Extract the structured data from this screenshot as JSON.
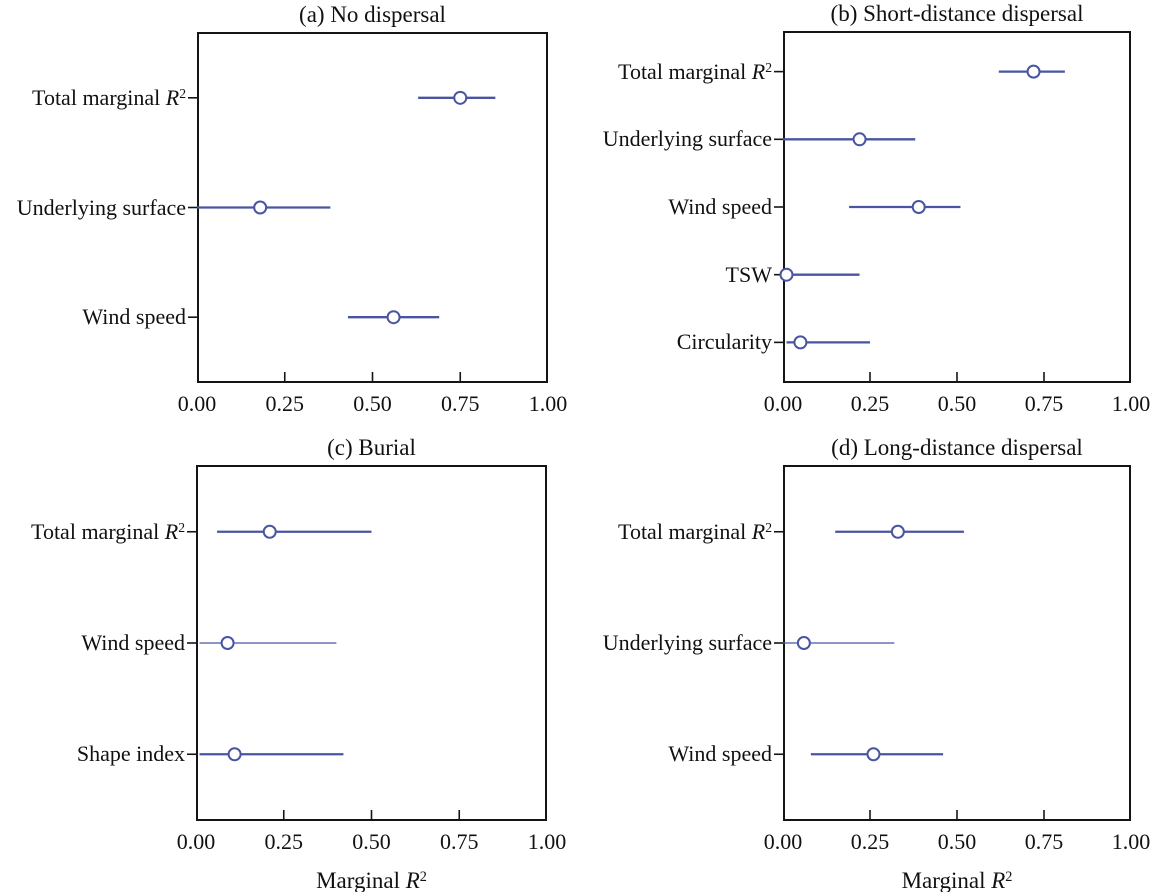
{
  "figure": {
    "background": "#ffffff"
  },
  "style": {
    "accent": "#4a55a2",
    "axis_color": "#151515",
    "text_color": "#111111",
    "marker_fill": "#ffffff"
  },
  "chart_data": [
    {
      "id": "a",
      "type": "scatter",
      "subtype": "dot-interval",
      "title": "(a) No dispersal",
      "xlabel": null,
      "xlim": [
        0,
        1
      ],
      "xticks": [
        0,
        0.25,
        0.5,
        0.75,
        1
      ],
      "xtick_labels": [
        "0.00",
        "0.25",
        "0.50",
        "0.75",
        "1.00"
      ],
      "rows": [
        {
          "label": "Total marginal R²",
          "estimate": 0.75,
          "ci": [
            0.63,
            0.85
          ],
          "line_weight": "thick"
        },
        {
          "label": "Underlying surface",
          "estimate": 0.18,
          "ci": [
            0.0,
            0.38
          ],
          "line_weight": "thick"
        },
        {
          "label": "Wind speed",
          "estimate": 0.56,
          "ci": [
            0.43,
            0.69
          ],
          "line_weight": "thick"
        }
      ]
    },
    {
      "id": "b",
      "type": "scatter",
      "subtype": "dot-interval",
      "title": "(b) Short-distance dispersal",
      "xlabel": null,
      "xlim": [
        0,
        1
      ],
      "xticks": [
        0,
        0.25,
        0.5,
        0.75,
        1
      ],
      "xtick_labels": [
        "0.00",
        "0.25",
        "0.50",
        "0.75",
        "1.00"
      ],
      "rows": [
        {
          "label": "Total marginal R²",
          "estimate": 0.72,
          "ci": [
            0.62,
            0.81
          ],
          "line_weight": "thick"
        },
        {
          "label": "Underlying surface",
          "estimate": 0.22,
          "ci": [
            0.0,
            0.38
          ],
          "line_weight": "thick"
        },
        {
          "label": "Wind speed",
          "estimate": 0.39,
          "ci": [
            0.19,
            0.51
          ],
          "line_weight": "thick"
        },
        {
          "label": "TSW",
          "estimate": 0.01,
          "ci": [
            0.0,
            0.22
          ],
          "line_weight": "thick"
        },
        {
          "label": "Circularity",
          "estimate": 0.05,
          "ci": [
            0.01,
            0.25
          ],
          "line_weight": "thick"
        }
      ]
    },
    {
      "id": "c",
      "type": "scatter",
      "subtype": "dot-interval",
      "title": "(c) Burial",
      "xlabel": "Marginal R²",
      "xlim": [
        0,
        1
      ],
      "xticks": [
        0,
        0.25,
        0.5,
        0.75,
        1
      ],
      "xtick_labels": [
        "0.00",
        "0.25",
        "0.50",
        "0.75",
        "1.00"
      ],
      "rows": [
        {
          "label": "Total marginal R²",
          "estimate": 0.21,
          "ci": [
            0.06,
            0.5
          ],
          "line_weight": "thick"
        },
        {
          "label": "Wind speed",
          "estimate": 0.09,
          "ci": [
            0.01,
            0.4
          ],
          "line_weight": "thin"
        },
        {
          "label": "Shape index",
          "estimate": 0.11,
          "ci": [
            0.01,
            0.42
          ],
          "line_weight": "thick"
        }
      ]
    },
    {
      "id": "d",
      "type": "scatter",
      "subtype": "dot-interval",
      "title": "(d) Long-distance dispersal",
      "xlabel": "Marginal R²",
      "xlim": [
        0,
        1
      ],
      "xticks": [
        0,
        0.25,
        0.5,
        0.75,
        1
      ],
      "xtick_labels": [
        "0.00",
        "0.25",
        "0.50",
        "0.75",
        "1.00"
      ],
      "rows": [
        {
          "label": "Total marginal R²",
          "estimate": 0.33,
          "ci": [
            0.15,
            0.52
          ],
          "line_weight": "thick"
        },
        {
          "label": "Underlying surface",
          "estimate": 0.06,
          "ci": [
            0.0,
            0.32
          ],
          "line_weight": "thin"
        },
        {
          "label": "Wind speed",
          "estimate": 0.26,
          "ci": [
            0.08,
            0.46
          ],
          "line_weight": "thick"
        }
      ]
    }
  ]
}
